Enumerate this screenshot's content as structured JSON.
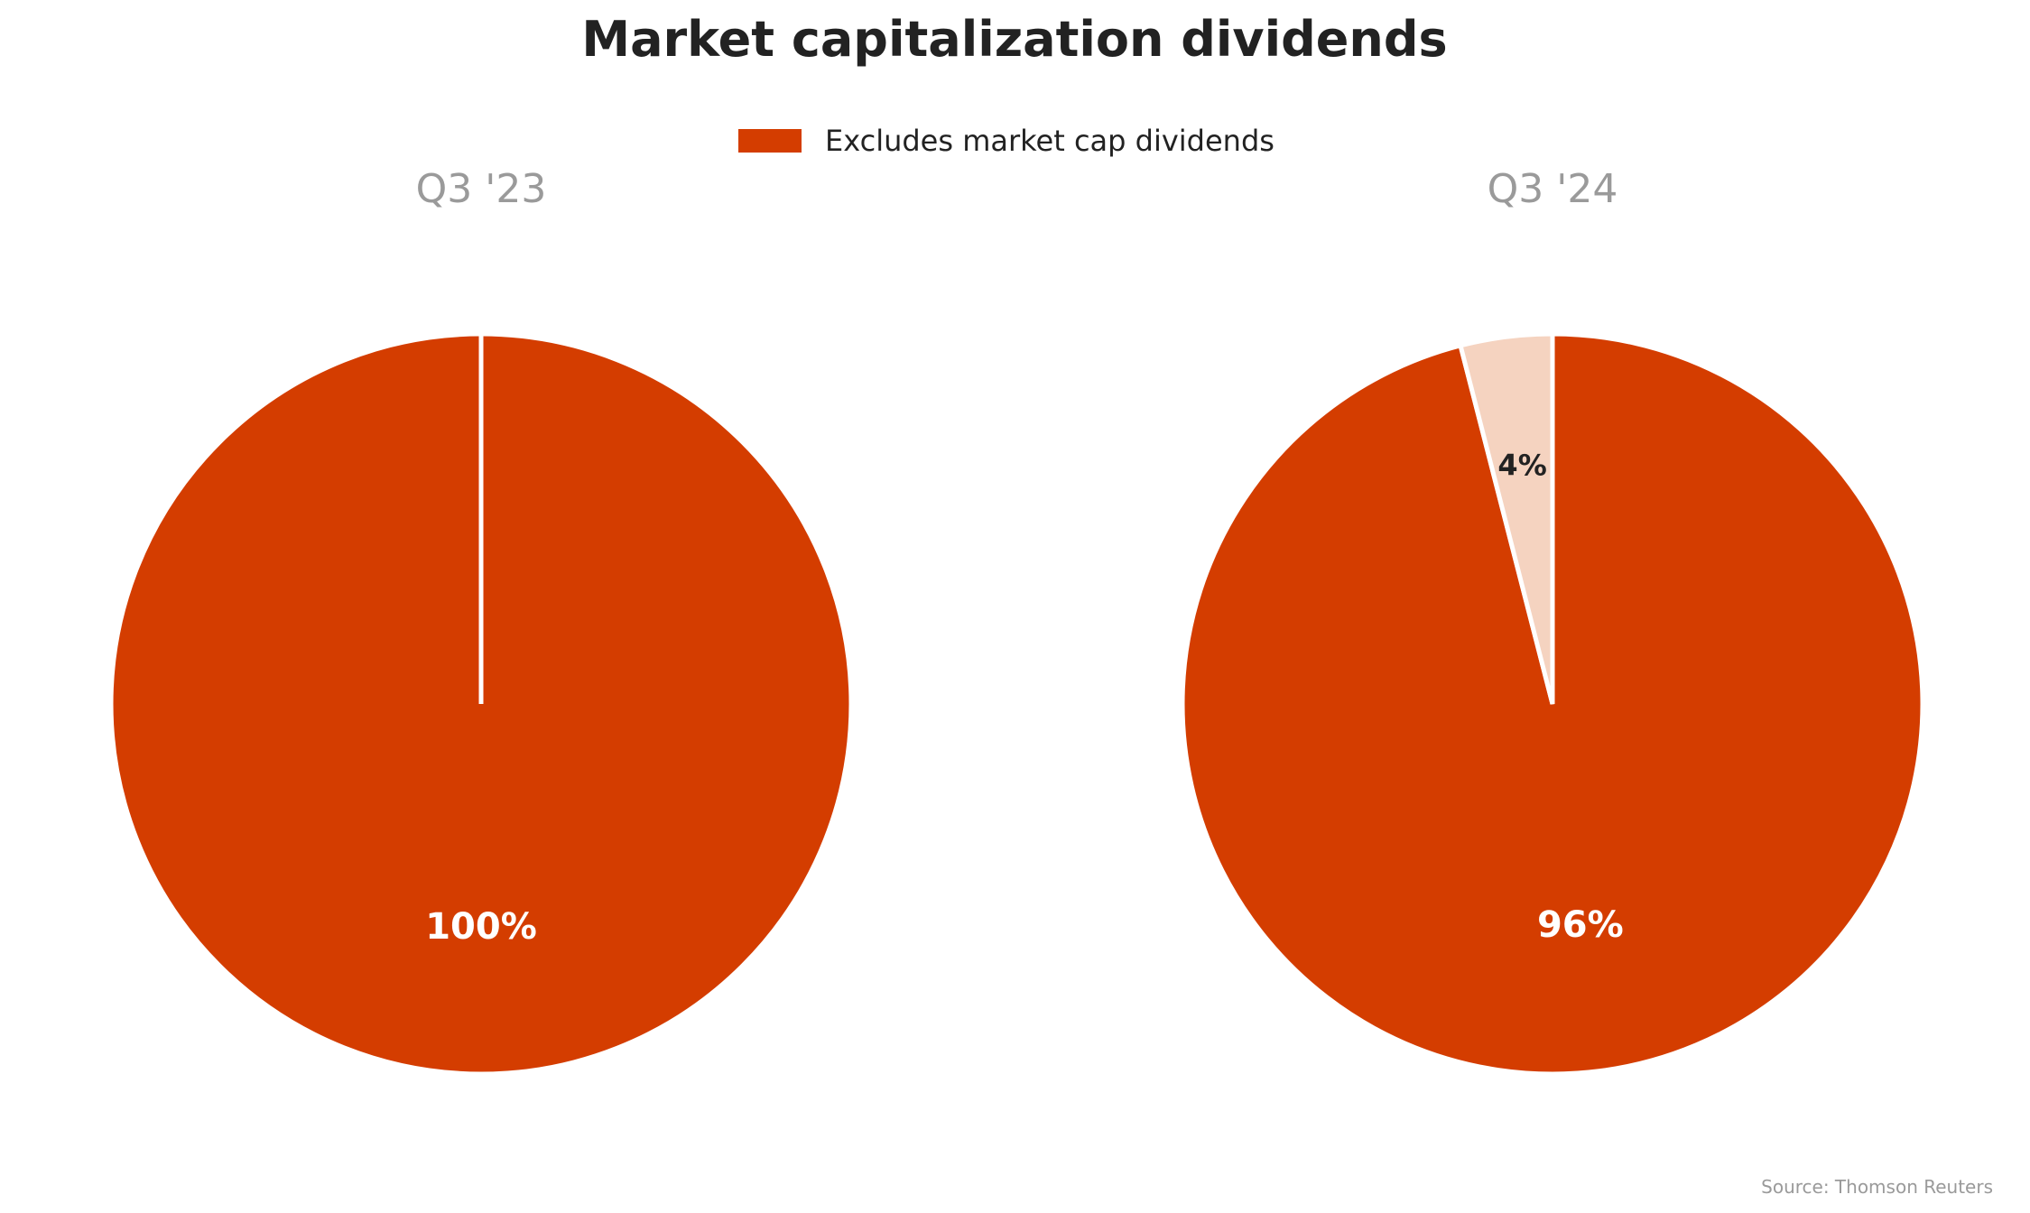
{
  "title": "Market capitalization dividends",
  "source": "Source: Thomson Reuters",
  "colors": {
    "primary": "#d43d00",
    "secondary": "#f5d3c0",
    "slice_border": "#ffffff",
    "label_on_primary": "#ffffff",
    "label_on_secondary": "#222222"
  },
  "chart_data": [
    {
      "type": "pie",
      "title": "Q3 '23",
      "legend_position": "top-center",
      "legend": [
        "Excludes market cap dividends"
      ],
      "slices": [
        {
          "label": "100%",
          "value": 100,
          "color": "#d43d00"
        }
      ]
    },
    {
      "type": "pie",
      "title": "Q3 '24",
      "slices": [
        {
          "label": "96%",
          "value": 96,
          "color": "#d43d00"
        },
        {
          "label": "4%",
          "value": 4,
          "color": "#f5d3c0"
        }
      ]
    }
  ]
}
